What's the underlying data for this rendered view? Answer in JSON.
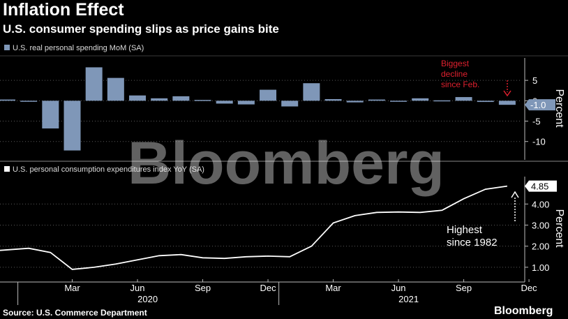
{
  "header": {
    "title": "Inflation Effect",
    "subtitle": "U.S. consumer spending slips as price gains bite"
  },
  "footer": {
    "source": "Source: U.S. Commerce Department",
    "brand": "Bloomberg"
  },
  "watermark": "Bloomberg",
  "colors": {
    "background": "#000000",
    "bar": "#7f97b8",
    "line": "#ffffff",
    "annotation_top": "#e0202e",
    "grid": "#5a5a5a"
  },
  "chart_data": [
    {
      "type": "bar",
      "legend": "U.S. real personal spending MoM (SA)",
      "ylabel": "Percent",
      "ylim": [
        -14.5,
        10.5
      ],
      "yticks": [
        5,
        0,
        -5,
        -10
      ],
      "ytick_labels": [
        "5",
        "0",
        "-5",
        "-10"
      ],
      "categories": [
        "Dec 2019",
        "Jan 2020",
        "Feb 2020",
        "Mar 2020",
        "Apr 2020",
        "May 2020",
        "Jun 2020",
        "Jul 2020",
        "Aug 2020",
        "Sep 2020",
        "Oct 2020",
        "Nov 2020",
        "Dec 2020",
        "Jan 2021",
        "Feb 2021",
        "Mar 2021",
        "Apr 2021",
        "May 2021",
        "Jun 2021",
        "Jul 2021",
        "Aug 2021",
        "Sep 2021",
        "Oct 2021",
        "Nov 2021",
        "Dec 2021"
      ],
      "values": [
        0.3,
        -0.2,
        -6.8,
        -12.2,
        8.2,
        5.6,
        1.3,
        0.6,
        1.1,
        0.2,
        -0.7,
        -0.9,
        2.7,
        -1.4,
        4.3,
        0.4,
        -0.4,
        0.3,
        -0.2,
        0.6,
        0.1,
        0.9,
        -0.3,
        -1.0,
        null
      ],
      "last_value_label": "-1.0",
      "annotation": "Biggest\ndecline\nsince Feb."
    },
    {
      "type": "line",
      "legend": "U.S. personal consumption expenditures index YoY (SA)",
      "ylabel": "Percent",
      "ylim": [
        0.3,
        5.3
      ],
      "yticks": [
        4.0,
        3.0,
        2.0,
        1.0
      ],
      "ytick_labels": [
        "4.00",
        "3.00",
        "2.00",
        "1.00"
      ],
      "x": [
        "Dec 2019",
        "Jan 2020",
        "Feb 2020",
        "Mar 2020",
        "Apr 2020",
        "May 2020",
        "Jun 2020",
        "Jul 2020",
        "Aug 2020",
        "Sep 2020",
        "Oct 2020",
        "Nov 2020",
        "Dec 2020",
        "Jan 2021",
        "Feb 2021",
        "Mar 2021",
        "Apr 2021",
        "May 2021",
        "Jun 2021",
        "Jul 2021",
        "Aug 2021",
        "Sep 2021",
        "Oct 2021",
        "Nov 2021",
        "Dec 2021"
      ],
      "values": [
        1.8,
        1.9,
        1.7,
        0.9,
        1.0,
        1.15,
        1.35,
        1.55,
        1.6,
        1.45,
        1.42,
        1.5,
        1.53,
        1.5,
        2.0,
        3.1,
        3.45,
        3.6,
        3.62,
        3.6,
        3.7,
        4.25,
        4.7,
        4.85,
        null
      ],
      "last_value_label": "4.85",
      "annotation": "Highest\nsince 1982"
    }
  ],
  "x_axis": {
    "tick_labels": [
      "Mar",
      "Jun",
      "Sep",
      "Dec",
      "Mar",
      "Jun",
      "Sep",
      "Dec"
    ],
    "tick_months": [
      3,
      6,
      9,
      12,
      15,
      18,
      21,
      24
    ],
    "year_labels": [
      "2020",
      "2021"
    ]
  }
}
